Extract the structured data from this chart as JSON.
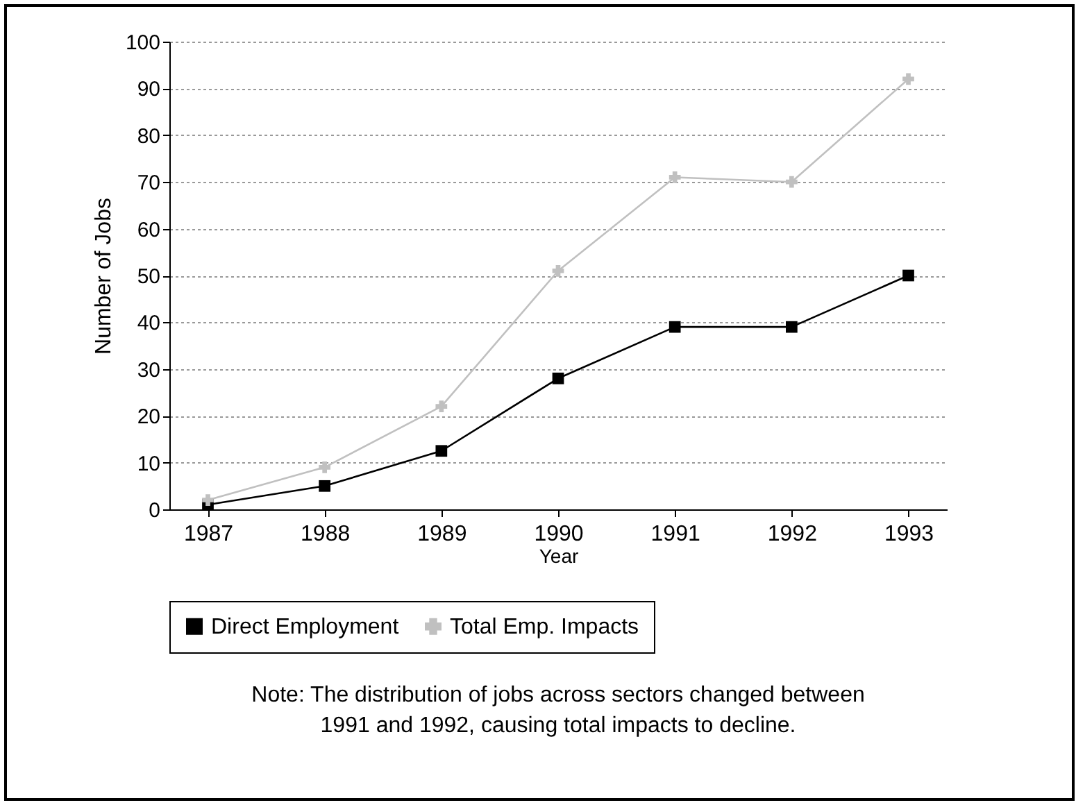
{
  "chart_data": {
    "type": "line",
    "xlabel": "Year",
    "ylabel": "Number of Jobs",
    "categories": [
      "1987",
      "1988",
      "1989",
      "1990",
      "1991",
      "1992",
      "1993"
    ],
    "series": [
      {
        "name": "Direct Employment",
        "color": "#000000",
        "marker": "square",
        "values": [
          1,
          5,
          12.5,
          28,
          39,
          39,
          50
        ]
      },
      {
        "name": "Total Emp. Impacts",
        "color": "#c0c0c0",
        "marker": "cross",
        "values": [
          2,
          9,
          22,
          51,
          71,
          70,
          92
        ]
      }
    ],
    "ylim": [
      0,
      100
    ],
    "yticks": [
      0,
      10,
      20,
      30,
      40,
      50,
      60,
      70,
      80,
      90,
      100
    ],
    "grid": "y",
    "legend": "bottom",
    "annotations": [
      "Note:  The distribution of jobs across sectors changed between",
      "1991 and 1992, causing total impacts to decline."
    ]
  }
}
